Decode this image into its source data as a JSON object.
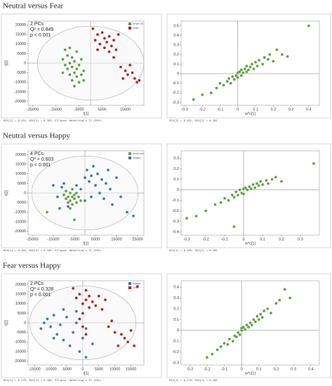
{
  "headings": [
    "Neutral versus Fear",
    "Neutral versus Happy",
    "Fear versus Happy"
  ],
  "chart_data": [
    {
      "type": "scatter",
      "kind": "score",
      "xlabel": "t[1]",
      "ylabel": "t[2]",
      "annotations": [
        "2 PCs",
        "Q² = 0.849",
        "p < 0.001"
      ],
      "footer": "R2X[1] = 0.202, R2X[2] = 0.181, Ellipse: Hotelling's T2 (95%)",
      "xlim": [
        -27000,
        23000
      ],
      "xticks": [
        -25000,
        -15000,
        -5000,
        5000,
        15000
      ],
      "ylim": [
        -22000,
        22000
      ],
      "yticks": [
        -20000,
        -15000,
        -10000,
        -5000,
        0,
        5000,
        10000,
        15000,
        20000
      ],
      "series": [
        {
          "name": "neutral",
          "color": "#5a9a3c",
          "x": [
            -12000,
            -11000,
            -10000,
            -10000,
            -9000,
            -9000,
            -8000,
            -8000,
            -8000,
            -7000,
            -7000,
            -7000,
            -6000,
            -6000,
            -6000,
            -5000,
            -5000,
            -4000,
            -4000,
            -3000,
            -3000,
            -11000,
            -12000,
            -9000
          ],
          "y": [
            2000,
            -1000,
            -3000,
            4000,
            -6000,
            0,
            -9000,
            3000,
            -2000,
            -12000,
            -5000,
            1000,
            -7000,
            -3000,
            6000,
            -10000,
            -1000,
            -6000,
            2000,
            -9000,
            -4000,
            7000,
            -5000,
            8000
          ]
        },
        {
          "name": "fear",
          "color": "#b01818",
          "x": [
            1000,
            2000,
            3000,
            4000,
            5000,
            6000,
            6000,
            7000,
            8000,
            8000,
            9000,
            10000,
            11000,
            12000,
            3000,
            13000,
            15000,
            16000,
            18000,
            19000,
            20000,
            21000,
            14000,
            10000,
            17000
          ],
          "y": [
            18000,
            12000,
            15000,
            10000,
            16000,
            8000,
            13000,
            11000,
            14000,
            6000,
            9000,
            12000,
            7000,
            15000,
            7000,
            -2000,
            -4000,
            -6000,
            -5000,
            -8000,
            -10000,
            -9000,
            -8000,
            3000,
            -1000
          ]
        }
      ]
    },
    {
      "type": "scatter",
      "kind": "loading",
      "xlabel": "w*c[1]",
      "footer": "R2X[1] = 0.202, R2X[2] = 0.181",
      "xlim": [
        -0.32,
        0.46
      ],
      "xticks": [
        -0.3,
        -0.2,
        -0.1,
        0,
        0.1,
        0.2,
        0.3,
        0.4
      ],
      "ylim": [
        -0.33,
        0.55
      ],
      "yticks": [
        -0.3,
        -0.2,
        -0.1,
        0,
        0.1,
        0.2,
        0.3,
        0.4,
        0.5
      ],
      "series": [
        {
          "color": "#5a9a3c",
          "x": [
            -0.25,
            -0.2,
            -0.15,
            -0.12,
            -0.1,
            -0.08,
            -0.06,
            -0.05,
            -0.04,
            -0.03,
            -0.02,
            -0.01,
            0,
            0,
            0.01,
            0.02,
            0.02,
            0.03,
            0.04,
            0.05,
            0.05,
            0.06,
            0.07,
            0.08,
            0.09,
            0.1,
            0.11,
            0.12,
            0.14,
            0.15,
            0.17,
            0.18,
            0.2,
            0.22,
            0.25,
            0.28,
            0.4
          ],
          "y": [
            -0.27,
            -0.22,
            -0.2,
            -0.15,
            -0.1,
            -0.12,
            -0.08,
            -0.05,
            -0.1,
            -0.03,
            -0.06,
            -0.02,
            -0.04,
            0.01,
            0.02,
            -0.02,
            0.04,
            0.01,
            0.05,
            0.02,
            0.08,
            0.04,
            0.07,
            0.1,
            0.05,
            0.12,
            0.08,
            0.14,
            0.1,
            0.17,
            0.15,
            0.2,
            0.13,
            0.25,
            0.2,
            0.18,
            0.5
          ]
        }
      ]
    },
    {
      "type": "scatter",
      "kind": "score",
      "xlabel": "t[1]",
      "ylabel": "t[2]",
      "annotations": [
        "4 PCs",
        "Q² = 0.603",
        "p < 0.001"
      ],
      "footer": "R2X[1] = 0.189, R2X[2] = 0.109, Ellipse: Hotelling's T2 (95%)",
      "xlim": [
        -27000,
        28000
      ],
      "xticks": [
        -25000,
        -15000,
        -5000,
        5000,
        15000,
        25000
      ],
      "ylim": [
        -22000,
        22000
      ],
      "yticks": [
        -20000,
        -15000,
        -10000,
        -5000,
        0,
        5000,
        10000,
        15000,
        20000
      ],
      "series": [
        {
          "name": "neutral",
          "color": "#5a9a3c",
          "x": [
            -10000,
            -9000,
            -8000,
            -8000,
            -7000,
            -7000,
            -6000,
            -6000,
            -5000,
            -5000,
            -4000,
            -4000,
            -3000,
            -9000,
            -6000,
            -2000,
            -7000,
            -18000,
            -5000
          ],
          "y": [
            -1000,
            -3000,
            -2000,
            -5000,
            0,
            -4000,
            -2000,
            -6000,
            -1000,
            -3000,
            -5000,
            0,
            -2000,
            1000,
            2000,
            -4000,
            -8000,
            -10000,
            -14000
          ]
        },
        {
          "name": "happy",
          "color": "#2f6fb8",
          "x": [
            -15000,
            -13000,
            -11000,
            -10000,
            -8000,
            -4000,
            -2000,
            0,
            1000,
            2000,
            3000,
            3000,
            4000,
            5000,
            6000,
            7000,
            8000,
            9000,
            10000,
            11000,
            12000,
            13000,
            15000,
            17000,
            20000,
            23000,
            -12000,
            0
          ],
          "y": [
            4000,
            -2000,
            3000,
            5000,
            -7000,
            4000,
            2000,
            8000,
            12000,
            6000,
            9000,
            -2000,
            14000,
            4000,
            10000,
            0,
            7000,
            -3000,
            5000,
            12000,
            2000,
            -6000,
            8000,
            -2000,
            -10000,
            -12000,
            -8000,
            -4000
          ]
        }
      ]
    },
    {
      "type": "scatter",
      "kind": "loading",
      "xlabel": "w*c[1]",
      "footer": "R2X[1] = 0.189, R2X[2] = 0.109",
      "xlim": [
        -0.33,
        0.4
      ],
      "xticks": [
        -0.3,
        -0.2,
        -0.1,
        0,
        0.1,
        0.2,
        0.3
      ],
      "ylim": [
        -0.43,
        0.37
      ],
      "yticks": [
        -0.4,
        -0.3,
        -0.2,
        -0.1,
        0,
        0.1,
        0.2,
        0.3
      ],
      "series": [
        {
          "color": "#5a9a3c",
          "x": [
            -0.3,
            -0.25,
            -0.2,
            -0.15,
            -0.12,
            -0.1,
            -0.08,
            -0.06,
            -0.05,
            -0.04,
            -0.03,
            -0.02,
            -0.01,
            0,
            0,
            0.01,
            0.02,
            0.03,
            0.04,
            0.05,
            0.06,
            0.07,
            0.08,
            0.09,
            0.1,
            0.12,
            0.13,
            0.15,
            0.17,
            0.2,
            -0.05,
            0.37
          ],
          "y": [
            -0.27,
            -0.25,
            -0.2,
            -0.14,
            -0.12,
            -0.08,
            -0.1,
            -0.05,
            -0.07,
            -0.02,
            -0.05,
            0,
            -0.03,
            0.01,
            -0.04,
            0.02,
            0,
            0.03,
            0.01,
            0.05,
            0.02,
            0.06,
            0.04,
            0.08,
            0.05,
            0.09,
            0.06,
            0.1,
            0.12,
            0.08,
            -0.35,
            0.25
          ]
        }
      ]
    },
    {
      "type": "scatter",
      "kind": "score",
      "xlabel": "t[1]",
      "ylabel": "t[2]",
      "annotations": [
        "2 PCs",
        "Q² = 0.328",
        "p < 0.001"
      ],
      "footer": "R2X[1] = 0.179, R2X[2] = 0.189, Ellipse: Hotelling's T2 (95%)",
      "xlim": [
        -17000,
        19000
      ],
      "xticks": [
        -15000,
        -10000,
        -5000,
        0,
        5000,
        10000,
        15000
      ],
      "ylim": [
        -22000,
        22000
      ],
      "yticks": [
        -20000,
        -15000,
        -10000,
        -5000,
        0,
        5000,
        10000,
        15000,
        20000
      ],
      "series": [
        {
          "name": "happy",
          "color": "#2f6fb8",
          "x": [
            -13000,
            -12000,
            -11000,
            -10000,
            -9000,
            -8000,
            -7000,
            -6000,
            -5000,
            -4000,
            -3000,
            -2000,
            -1000,
            0,
            1000,
            -6000,
            -9000,
            3000,
            -2000,
            1000
          ],
          "y": [
            -3000,
            0,
            2000,
            -2000,
            4000,
            -6000,
            -1000,
            -9000,
            3000,
            -12000,
            -5000,
            0,
            -15000,
            -8000,
            -3000,
            7000,
            -8000,
            -11000,
            6000,
            -18000
          ]
        },
        {
          "name": "fear",
          "color": "#b01818",
          "x": [
            -3000,
            -2000,
            -1000,
            0,
            0,
            1000,
            1000,
            2000,
            2000,
            3000,
            4000,
            5000,
            6000,
            7000,
            -1000,
            0,
            1000,
            8000,
            10000,
            12000,
            13000,
            14000,
            15000,
            16000,
            17000,
            11000,
            9000
          ],
          "y": [
            18000,
            13000,
            15000,
            10000,
            5000,
            12000,
            17000,
            8000,
            14000,
            11000,
            9000,
            14000,
            7000,
            12000,
            2000,
            -2000,
            -6000,
            -2000,
            -5000,
            -6000,
            -8000,
            -10000,
            -4000,
            -12000,
            19000,
            -12000,
            1000
          ]
        }
      ]
    },
    {
      "type": "scatter",
      "kind": "loading",
      "xlabel": "w*c[1]",
      "footer": "R2X[1] = 0.179, R2X[2] = 0.189",
      "xlim": [
        -0.35,
        0.45
      ],
      "xticks": [
        -0.3,
        -0.2,
        -0.1,
        0,
        0.1,
        0.2,
        0.3,
        0.4
      ],
      "ylim": [
        -0.32,
        0.46
      ],
      "yticks": [
        -0.3,
        -0.2,
        -0.1,
        0,
        0.1,
        0.2,
        0.3,
        0.4
      ],
      "series": [
        {
          "color": "#5a9a3c",
          "x": [
            -0.2,
            -0.17,
            -0.14,
            -0.12,
            -0.1,
            -0.08,
            -0.07,
            -0.05,
            -0.04,
            -0.03,
            -0.02,
            -0.01,
            0,
            0,
            0.01,
            0.02,
            0.03,
            0.04,
            0.05,
            0.06,
            0.07,
            0.08,
            0.09,
            0.1,
            0.11,
            0.12,
            0.13,
            0.15,
            0.17,
            0.2,
            0.22,
            0.25,
            0.28
          ],
          "y": [
            -0.25,
            -0.22,
            -0.18,
            -0.15,
            -0.12,
            -0.13,
            -0.08,
            -0.1,
            -0.05,
            -0.06,
            -0.02,
            -0.04,
            0,
            0.02,
            0.03,
            0.01,
            0.05,
            0.03,
            0.07,
            0.05,
            0.1,
            0.08,
            0.13,
            0.1,
            0.15,
            0.12,
            0.18,
            0.2,
            0.16,
            0.25,
            0.28,
            0.38,
            0.3
          ]
        }
      ]
    }
  ]
}
